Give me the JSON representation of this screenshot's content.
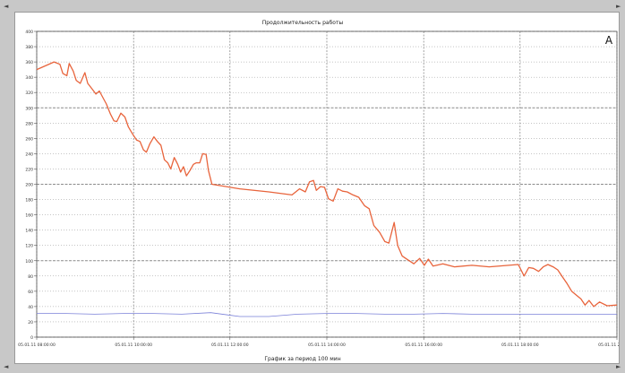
{
  "window": {
    "left_arrow": "◄",
    "right_arrow": "►",
    "up_arrow": "▲",
    "down_arrow": "▼"
  },
  "panel_label": "A",
  "colors": {
    "temperature": "#e8643c",
    "secondary": "#7a80d8",
    "grid": "#8c8c8c",
    "background": "#ffffff"
  },
  "chart_data": {
    "type": "line",
    "title": "Продолжительность работы",
    "xlabel": "График за период 100 мин",
    "ylabel": "",
    "grid": true,
    "legend": "none",
    "ylim": [
      0,
      400
    ],
    "xlim": [
      0,
      100
    ],
    "y_ticks": [
      0,
      20,
      40,
      60,
      80,
      100,
      120,
      140,
      160,
      180,
      200,
      220,
      240,
      260,
      280,
      300,
      320,
      340,
      360,
      380,
      400
    ],
    "x_ticks": [
      {
        "x": 0,
        "label": "05.01.11 08:00:00"
      },
      {
        "x": 16.7,
        "label": "05.01.11 10:00:00"
      },
      {
        "x": 33.3,
        "label": "05.01.11 12:00:00"
      },
      {
        "x": 50,
        "label": "05.01.11 14:00:00"
      },
      {
        "x": 66.7,
        "label": "05.01.11 16:00:00"
      },
      {
        "x": 83.3,
        "label": "05.01.11 18:00:00"
      },
      {
        "x": 100,
        "label": "05.01.11 20:00:00"
      }
    ],
    "series": [
      {
        "color": "#e8643c",
        "points": [
          [
            0,
            350
          ],
          [
            1.5,
            355
          ],
          [
            3,
            360
          ],
          [
            4,
            357
          ],
          [
            4.5,
            345
          ],
          [
            5.2,
            342
          ],
          [
            5.6,
            358
          ],
          [
            6.3,
            348
          ],
          [
            6.8,
            336
          ],
          [
            7.5,
            332
          ],
          [
            8.3,
            346
          ],
          [
            8.8,
            332
          ],
          [
            9.5,
            325
          ],
          [
            10.2,
            318
          ],
          [
            10.8,
            322
          ],
          [
            11.3,
            315
          ],
          [
            12,
            305
          ],
          [
            12.7,
            292
          ],
          [
            13.3,
            283
          ],
          [
            13.8,
            282
          ],
          [
            14.5,
            293
          ],
          [
            15.2,
            288
          ],
          [
            15.8,
            275
          ],
          [
            16.5,
            266
          ],
          [
            17.2,
            258
          ],
          [
            17.8,
            256
          ],
          [
            18.4,
            245
          ],
          [
            18.9,
            242
          ],
          [
            19.5,
            253
          ],
          [
            20.2,
            262
          ],
          [
            20.8,
            256
          ],
          [
            21.4,
            251
          ],
          [
            22,
            232
          ],
          [
            22.6,
            228
          ],
          [
            23.1,
            220
          ],
          [
            23.7,
            235
          ],
          [
            24.3,
            226
          ],
          [
            24.8,
            216
          ],
          [
            25.3,
            223
          ],
          [
            25.8,
            211
          ],
          [
            26.4,
            218
          ],
          [
            27,
            226
          ],
          [
            27.5,
            228
          ],
          [
            28.1,
            228
          ],
          [
            28.6,
            240
          ],
          [
            29.2,
            239
          ],
          [
            29.6,
            218
          ],
          [
            30.2,
            200
          ],
          [
            31,
            199
          ],
          [
            35,
            194
          ],
          [
            40,
            190
          ],
          [
            44,
            186
          ],
          [
            45.3,
            194
          ],
          [
            46.3,
            190
          ],
          [
            47,
            203
          ],
          [
            47.7,
            205
          ],
          [
            48.2,
            192
          ],
          [
            48.9,
            197
          ],
          [
            49.6,
            196
          ],
          [
            50.3,
            181
          ],
          [
            51.1,
            178
          ],
          [
            51.9,
            194
          ],
          [
            52.7,
            191
          ],
          [
            53.5,
            190
          ],
          [
            54.5,
            186
          ],
          [
            55.5,
            183
          ],
          [
            56.5,
            172
          ],
          [
            57.3,
            168
          ],
          [
            58.1,
            146
          ],
          [
            59.1,
            137
          ],
          [
            60,
            125
          ],
          [
            60.7,
            123
          ],
          [
            61.6,
            150
          ],
          [
            62.2,
            120
          ],
          [
            63,
            106
          ],
          [
            64,
            101
          ],
          [
            65,
            96
          ],
          [
            66,
            103
          ],
          [
            66.8,
            94
          ],
          [
            67.5,
            102
          ],
          [
            68.3,
            93
          ],
          [
            70,
            96
          ],
          [
            72,
            92
          ],
          [
            75,
            94
          ],
          [
            78,
            92
          ],
          [
            83,
            95
          ],
          [
            84,
            80
          ],
          [
            84.8,
            91
          ],
          [
            85.6,
            90
          ],
          [
            86.5,
            86
          ],
          [
            87.3,
            92
          ],
          [
            88.1,
            95
          ],
          [
            89,
            92
          ],
          [
            89.8,
            88
          ],
          [
            90.6,
            79
          ],
          [
            91.4,
            70
          ],
          [
            92.2,
            60
          ],
          [
            93,
            55
          ],
          [
            93.8,
            50
          ],
          [
            94.5,
            42
          ],
          [
            95.2,
            48
          ],
          [
            96,
            40
          ],
          [
            97,
            46
          ],
          [
            98.3,
            41
          ],
          [
            100,
            42
          ]
        ]
      },
      {
        "color": "#7a80d8",
        "points": [
          [
            0,
            31
          ],
          [
            5,
            31
          ],
          [
            10,
            30
          ],
          [
            15,
            31
          ],
          [
            20,
            31
          ],
          [
            25,
            30
          ],
          [
            30,
            32
          ],
          [
            35,
            27
          ],
          [
            40,
            27
          ],
          [
            45,
            30
          ],
          [
            50,
            31
          ],
          [
            55,
            31
          ],
          [
            60,
            30
          ],
          [
            65,
            30
          ],
          [
            70,
            31
          ],
          [
            75,
            30
          ],
          [
            80,
            30
          ],
          [
            85,
            30
          ],
          [
            90,
            30
          ],
          [
            95,
            30
          ],
          [
            100,
            30
          ]
        ]
      }
    ]
  }
}
